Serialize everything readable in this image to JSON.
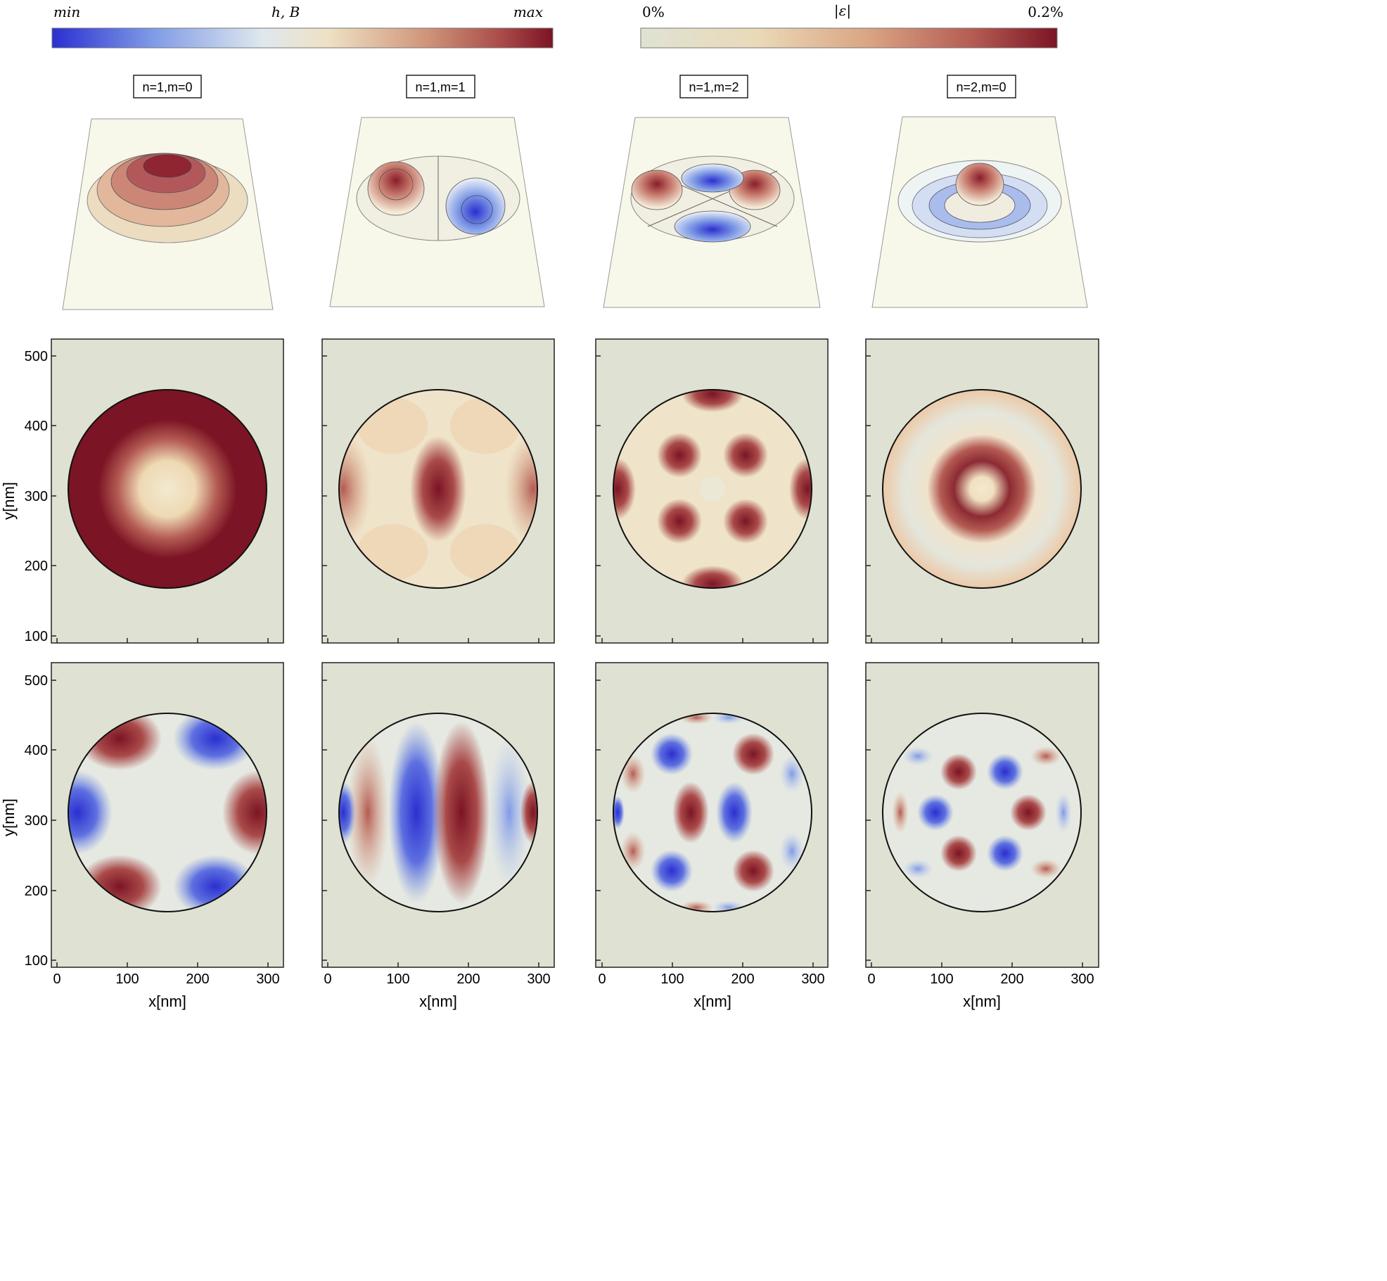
{
  "colorbars": {
    "left": {
      "min_label": "min",
      "title": "h, B",
      "max_label": "max",
      "stops": [
        "#2b2fd0",
        "#7f9ae6",
        "#dfe8ee",
        "#efe1c4",
        "#cf9479",
        "#a94a49",
        "#7b1424"
      ]
    },
    "right": {
      "min_label": "0%",
      "title": "|ε|",
      "max_label": "0.2%",
      "stops": [
        "#dfe3d3",
        "#ead9b8",
        "#d9a482",
        "#b45b53",
        "#7b1424"
      ]
    }
  },
  "modes": [
    {
      "label": "n=1,m=0"
    },
    {
      "label": "n=1,m=1"
    },
    {
      "label": "n=1,m=2"
    },
    {
      "label": "n=2,m=0"
    }
  ],
  "axes": {
    "y_label": "y[nm]",
    "x_label": "x[nm]",
    "y_ticks": [
      "500",
      "400",
      "300",
      "200",
      "100"
    ],
    "x_ticks": [
      "0",
      "100",
      "200",
      "300"
    ]
  },
  "colors": {
    "panel_bg": "#dfe2d3",
    "surface_plane": "#f8f8ea",
    "dark_red": "#7b1424",
    "blue": "#2b2fd0"
  }
}
